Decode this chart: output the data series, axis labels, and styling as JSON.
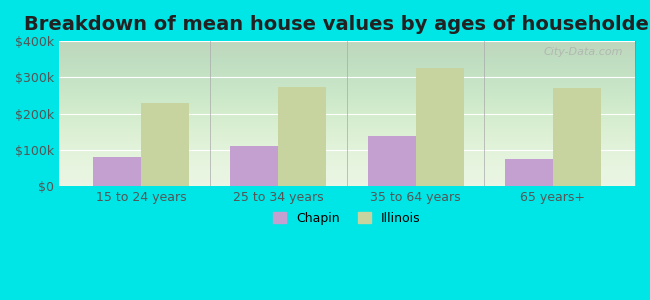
{
  "title": "Breakdown of mean house values by ages of householders",
  "categories": [
    "15 to 24 years",
    "25 to 34 years",
    "35 to 64 years",
    "65 years+"
  ],
  "chapin_values": [
    80000,
    110000,
    140000,
    75000
  ],
  "illinois_values": [
    230000,
    275000,
    325000,
    270000
  ],
  "chapin_color": "#c4a0d0",
  "illinois_color": "#c8d4a0",
  "background_color": "#00e5e5",
  "ylim": [
    0,
    400000
  ],
  "yticks": [
    0,
    100000,
    200000,
    300000,
    400000
  ],
  "ytick_labels": [
    "$0",
    "$100k",
    "$200k",
    "$300k",
    "$400k"
  ],
  "legend_chapin": "Chapin",
  "legend_illinois": "Illinois",
  "title_fontsize": 14,
  "bar_width": 0.35,
  "watermark": "City-Data.com"
}
